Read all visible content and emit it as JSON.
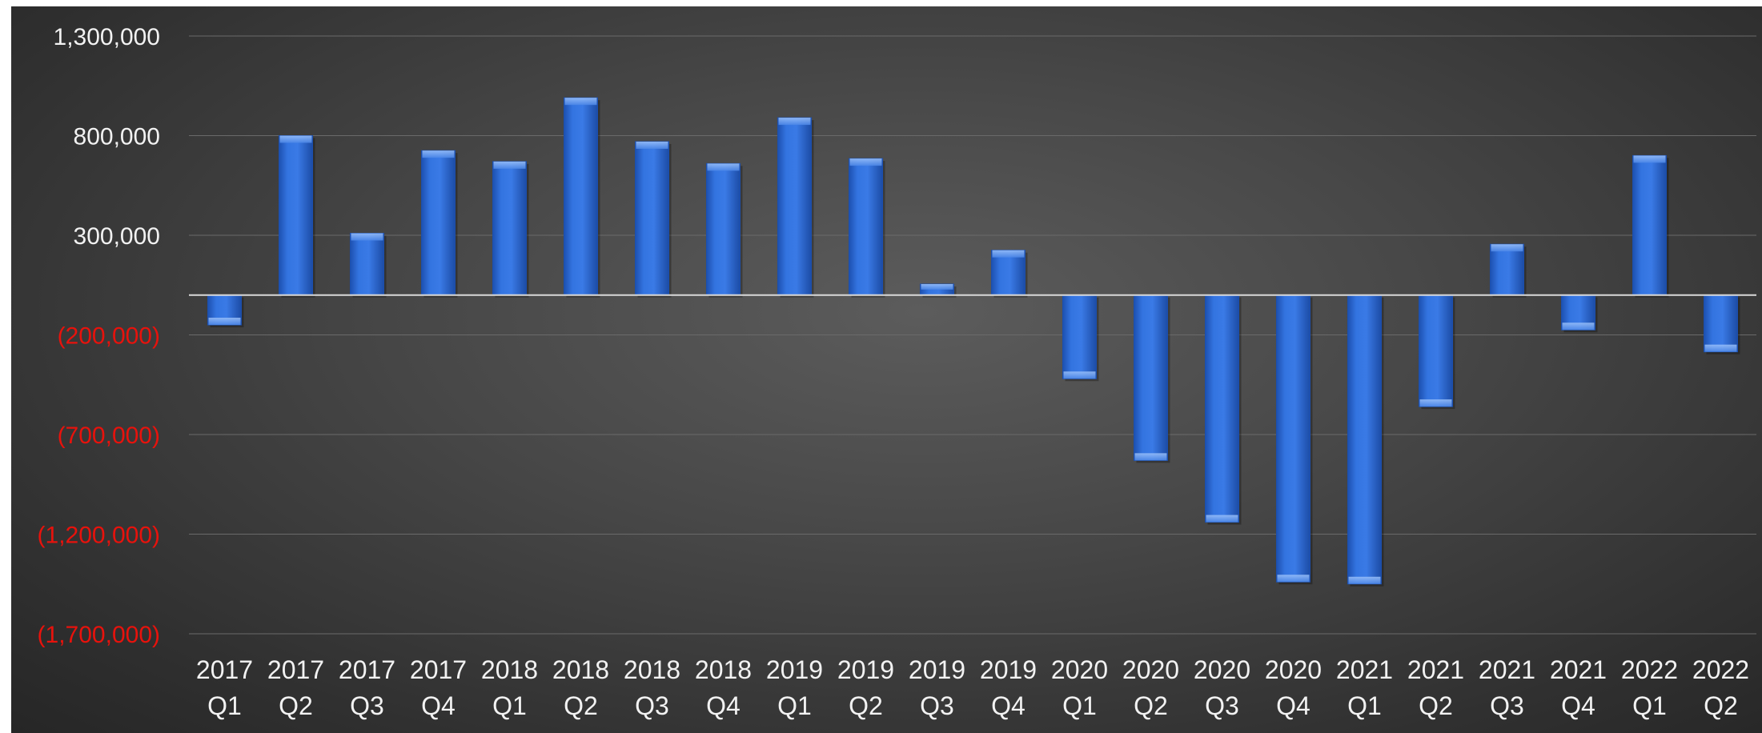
{
  "chart_data": {
    "type": "bar",
    "categories": [
      [
        "2017",
        "Q1"
      ],
      [
        "2017",
        "Q2"
      ],
      [
        "2017",
        "Q3"
      ],
      [
        "2017",
        "Q4"
      ],
      [
        "2018",
        "Q1"
      ],
      [
        "2018",
        "Q2"
      ],
      [
        "2018",
        "Q3"
      ],
      [
        "2018",
        "Q4"
      ],
      [
        "2019",
        "Q1"
      ],
      [
        "2019",
        "Q2"
      ],
      [
        "2019",
        "Q3"
      ],
      [
        "2019",
        "Q4"
      ],
      [
        "2020",
        "Q1"
      ],
      [
        "2020",
        "Q2"
      ],
      [
        "2020",
        "Q3"
      ],
      [
        "2020",
        "Q4"
      ],
      [
        "2021",
        "Q1"
      ],
      [
        "2021",
        "Q2"
      ],
      [
        "2021",
        "Q3"
      ],
      [
        "2021",
        "Q4"
      ],
      [
        "2022",
        "Q1"
      ],
      [
        "2022",
        "Q2"
      ]
    ],
    "values": [
      -150000,
      800000,
      310000,
      725000,
      670000,
      990000,
      770000,
      660000,
      890000,
      685000,
      55000,
      225000,
      -420000,
      -830000,
      -1140000,
      -1440000,
      -1450000,
      -560000,
      255000,
      -175000,
      700000,
      -285000
    ],
    "ylim": [
      -1700000,
      1300000
    ],
    "y_ticks": [
      {
        "value": 1300000,
        "label": "1,300,000"
      },
      {
        "value": 800000,
        "label": "800,000"
      },
      {
        "value": 300000,
        "label": "300,000"
      },
      {
        "value": -200000,
        "label": "(200,000)"
      },
      {
        "value": -700000,
        "label": "(700,000)"
      },
      {
        "value": -1200000,
        "label": "(1,200,000)"
      },
      {
        "value": -1700000,
        "label": "(1,700,000)"
      }
    ],
    "grid": true,
    "legend": "none",
    "colors": {
      "bar": "#2f6fd6",
      "bar_dark": "#1b4fae",
      "bar_light": "#5b95ee",
      "positive_tick": "#f2f2f2",
      "negative_tick": "#e8120c",
      "gridline": "#6a6a6a",
      "zero_line": "#d9d9d9"
    }
  }
}
